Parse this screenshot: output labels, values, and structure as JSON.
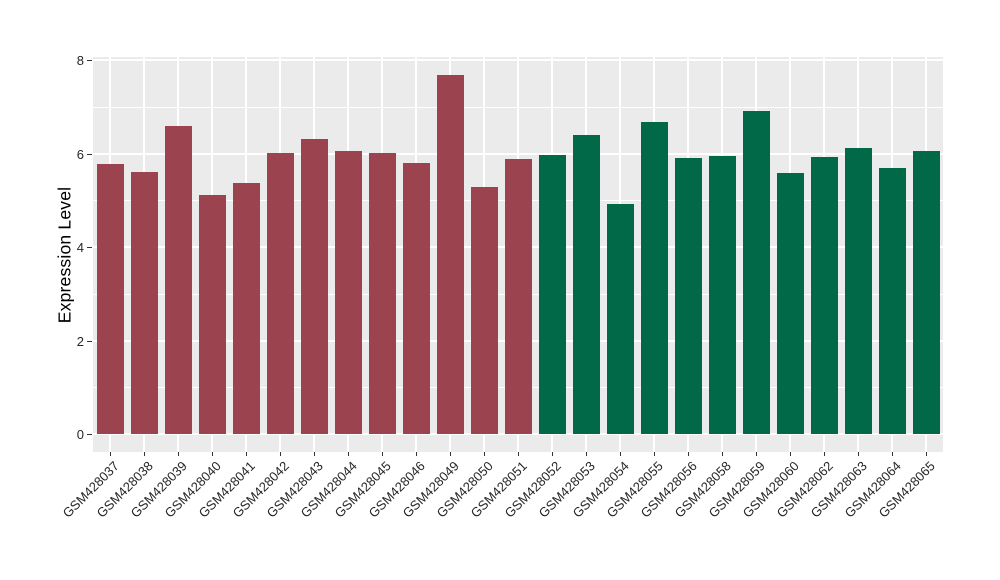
{
  "chart_data": {
    "type": "bar",
    "title": "",
    "xlabel": "",
    "ylabel": "Expression Level",
    "ylim": [
      0,
      8
    ],
    "yticks": [
      0,
      2,
      4,
      6,
      8
    ],
    "minor_gridlines": [
      1,
      3,
      5,
      7
    ],
    "grid": true,
    "legend_position": "none",
    "colors": {
      "group1_bar": "#9B434F",
      "group2_bar": "#016948",
      "panel_background": "#EBEBEB",
      "gridline": "#FFFFFF",
      "axis_text": "#262626",
      "tick_mark": "#333333",
      "figure_background": "#FFFFFF"
    },
    "bars": [
      {
        "label": "GSM428037",
        "value": 5.78,
        "group": 1
      },
      {
        "label": "GSM428038",
        "value": 5.61,
        "group": 1
      },
      {
        "label": "GSM428039",
        "value": 6.59,
        "group": 1
      },
      {
        "label": "GSM428040",
        "value": 5.11,
        "group": 1
      },
      {
        "label": "GSM428041",
        "value": 5.36,
        "group": 1
      },
      {
        "label": "GSM428042",
        "value": 6.02,
        "group": 1
      },
      {
        "label": "GSM428043",
        "value": 6.31,
        "group": 1
      },
      {
        "label": "GSM428044",
        "value": 6.05,
        "group": 1
      },
      {
        "label": "GSM428045",
        "value": 6.02,
        "group": 1
      },
      {
        "label": "GSM428046",
        "value": 5.8,
        "group": 1
      },
      {
        "label": "GSM428049",
        "value": 7.68,
        "group": 1
      },
      {
        "label": "GSM428050",
        "value": 5.28,
        "group": 1
      },
      {
        "label": "GSM428051",
        "value": 5.88,
        "group": 1
      },
      {
        "label": "GSM428052",
        "value": 5.97,
        "group": 2
      },
      {
        "label": "GSM428053",
        "value": 6.4,
        "group": 2
      },
      {
        "label": "GSM428054",
        "value": 4.92,
        "group": 2
      },
      {
        "label": "GSM428055",
        "value": 6.67,
        "group": 2
      },
      {
        "label": "GSM428056",
        "value": 5.9,
        "group": 2
      },
      {
        "label": "GSM428058",
        "value": 5.95,
        "group": 2
      },
      {
        "label": "GSM428059",
        "value": 6.9,
        "group": 2
      },
      {
        "label": "GSM428060",
        "value": 5.59,
        "group": 2
      },
      {
        "label": "GSM428062",
        "value": 5.92,
        "group": 2
      },
      {
        "label": "GSM428063",
        "value": 6.12,
        "group": 2
      },
      {
        "label": "GSM428064",
        "value": 5.7,
        "group": 2
      },
      {
        "label": "GSM428065",
        "value": 6.05,
        "group": 2
      }
    ]
  }
}
